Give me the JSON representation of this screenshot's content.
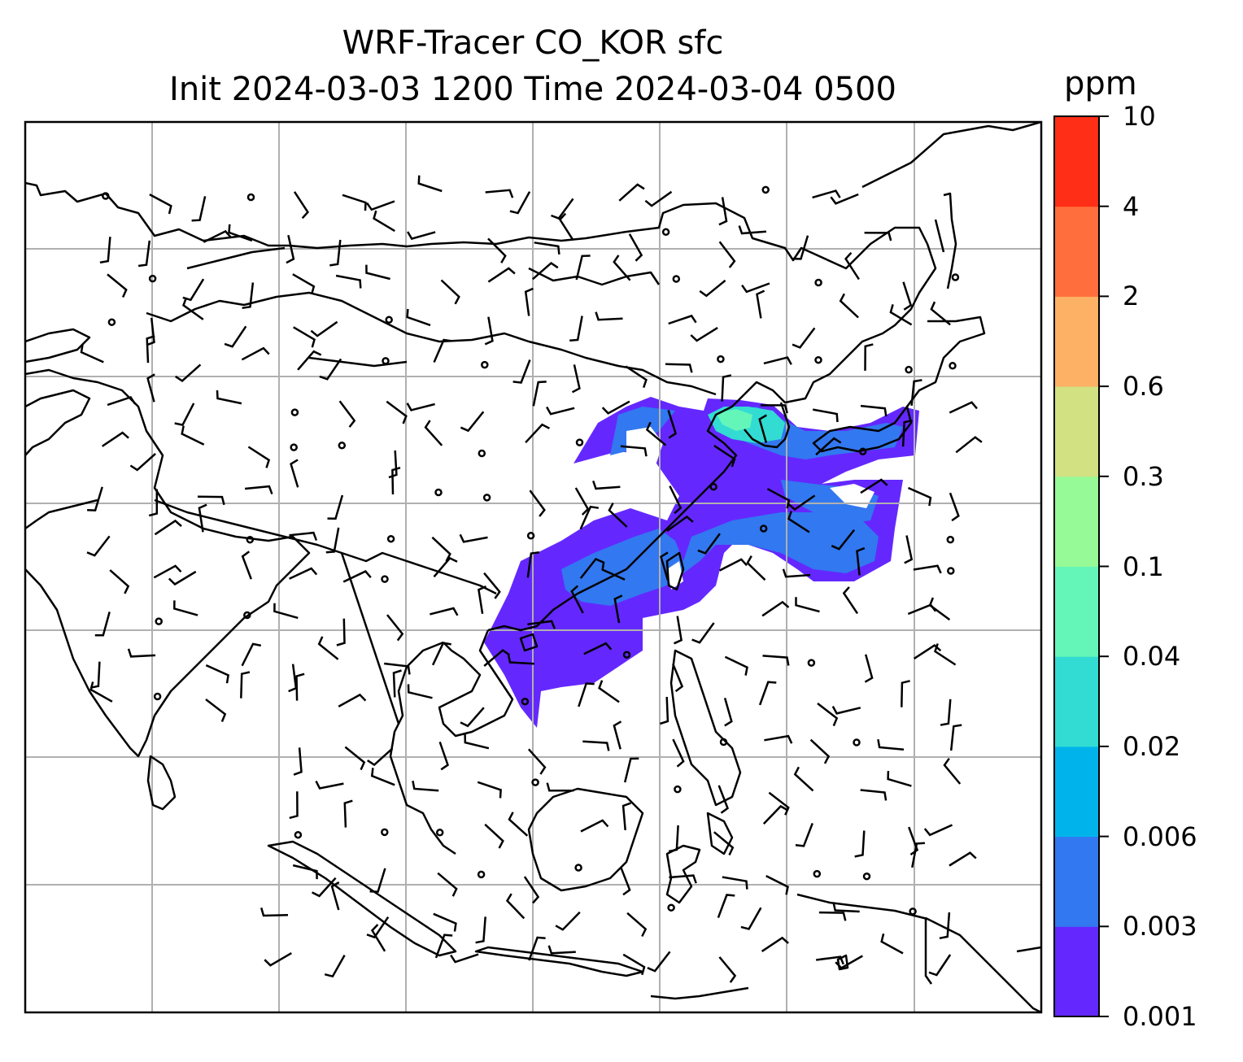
{
  "title": {
    "line1": "WRF-Tracer CO_KOR sfc",
    "line2": "Init 2024-03-03 1200 Time 2024-03-04 0500"
  },
  "colorbar": {
    "unit": "ppm",
    "levels": [
      "0.001",
      "0.003",
      "0.006",
      "0.02",
      "0.04",
      "0.1",
      "0.3",
      "0.6",
      "2",
      "4",
      "10"
    ],
    "colors": [
      "#6428ff",
      "#3278f0",
      "#00b4eb",
      "#32dcd2",
      "#64f5b9",
      "#96fa96",
      "#d2e182",
      "#fdb164",
      "#ff6e3c",
      "#ff2e17"
    ]
  },
  "map": {
    "background": "#ffffff",
    "gridlines": true,
    "grid_color": "#b0b0b0",
    "coastline_color": "#000000",
    "wind_barbs_color": "#000000",
    "legend": "colorbar-right"
  }
}
